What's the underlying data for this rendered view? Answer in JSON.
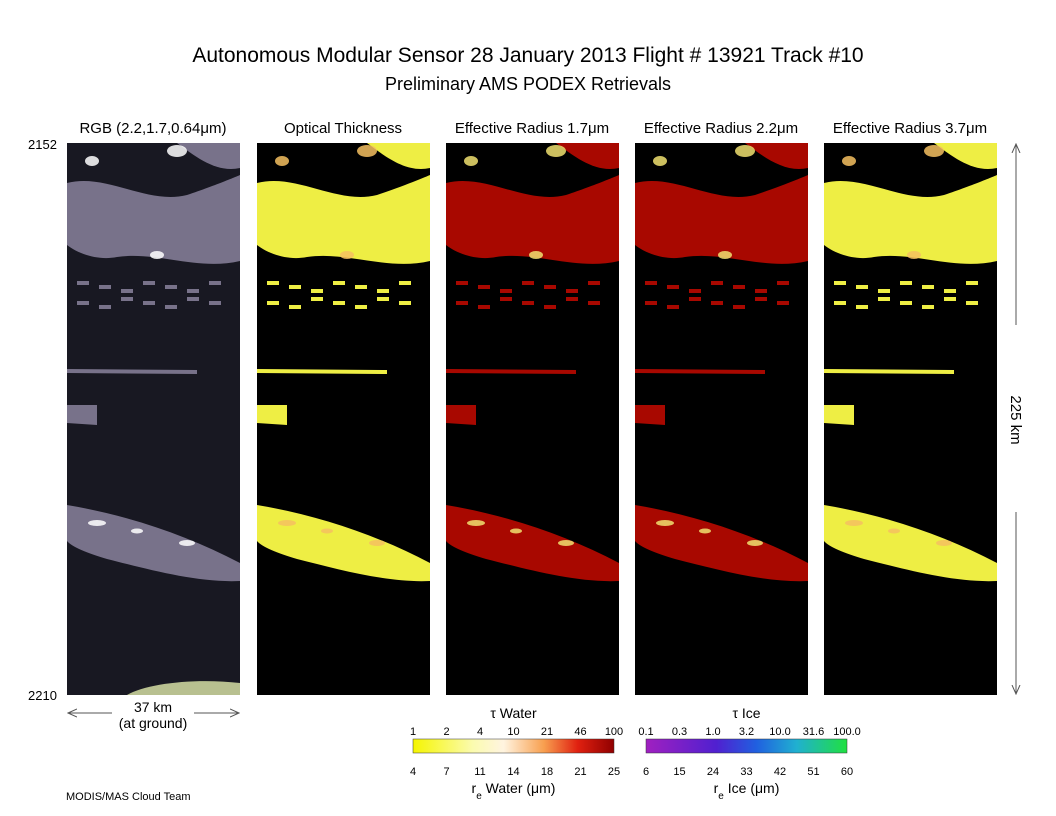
{
  "header": {
    "title": "Autonomous Modular Sensor  28 January 2013  Flight # 13921 Track #10",
    "subtitle": "Preliminary AMS PODEX Retrievals"
  },
  "panels": [
    {
      "title": "RGB (2.2,1.7,0.64μm)"
    },
    {
      "title": "Optical Thickness"
    },
    {
      "title": "Effective Radius 1.7μm"
    },
    {
      "title": "Effective Radius 2.2μm"
    },
    {
      "title": "Effective Radius 3.7μm"
    }
  ],
  "time_start": "2152",
  "time_end": "2210",
  "width_label": "37 km",
  "width_note": "(at ground)",
  "length_label": "225 km",
  "colorbars": [
    {
      "top_title": "τ Water",
      "top_ticks": [
        "1",
        "2",
        "4",
        "10",
        "21",
        "46",
        "100"
      ],
      "bottom_ticks": [
        "4",
        "7",
        "11",
        "14",
        "18",
        "21",
        "25"
      ],
      "bottom_title": [
        "r",
        "e",
        " Water (μm)"
      ]
    },
    {
      "top_title": "τ Ice",
      "top_ticks": [
        "0.1",
        "0.3",
        "1.0",
        "3.2",
        "10.0",
        "31.6",
        "100.0"
      ],
      "bottom_ticks": [
        "6",
        "15",
        "24",
        "33",
        "42",
        "51",
        "60"
      ],
      "bottom_title": [
        "r",
        "e",
        " Ice (μm)"
      ]
    }
  ],
  "footer": "MODIS/MAS Cloud Team"
}
